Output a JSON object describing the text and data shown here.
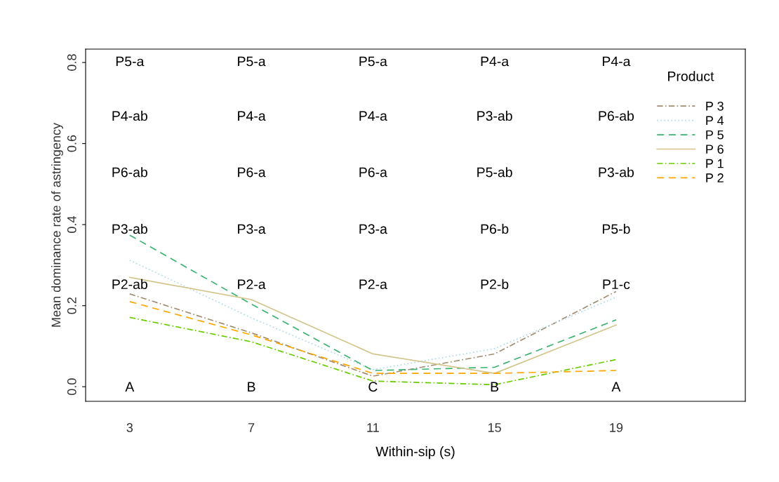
{
  "chart_data": {
    "type": "line",
    "xlabel": "Within-sip (s)",
    "ylabel": "Mean dominance rate of astringency",
    "legend_title": "Product",
    "x": [
      3,
      7,
      11,
      15,
      19
    ],
    "series": [
      {
        "name": "P 3",
        "color": "#a08c6e",
        "line_style": "dashdot",
        "values": [
          0.229,
          0.133,
          0.026,
          0.081,
          0.235
        ]
      },
      {
        "name": "P 4",
        "color": "#add8e6",
        "line_style": "dotted",
        "values": [
          0.312,
          0.17,
          0.042,
          0.094,
          0.221
        ]
      },
      {
        "name": "P 5",
        "color": "#3cb371",
        "line_style": "dashed",
        "values": [
          0.374,
          0.204,
          0.04,
          0.048,
          0.165
        ]
      },
      {
        "name": "P 6",
        "color": "#d2c48a",
        "line_style": "solid",
        "values": [
          0.27,
          0.215,
          0.081,
          0.033,
          0.152
        ]
      },
      {
        "name": "P 1",
        "color": "#66cc00",
        "line_style": "dashdot",
        "values": [
          0.171,
          0.111,
          0.014,
          0.005,
          0.067
        ]
      },
      {
        "name": "P 2",
        "color": "#ffa500",
        "line_style": "dashed",
        "values": [
          0.21,
          0.128,
          0.033,
          0.033,
          0.04
        ]
      }
    ],
    "xlim": [
      1.55,
      23.25
    ],
    "ylim": [
      -0.036,
      0.833
    ],
    "xticks": [
      3,
      7,
      11,
      15,
      19
    ],
    "yticks": [
      {
        "value": 0,
        "label": "0.0"
      },
      0.2,
      0.4,
      0.6,
      0.8
    ],
    "legend": "top right",
    "grid": false,
    "annotations": [
      "P5-a",
      "P5-a",
      "P5-a",
      "P4-a",
      "P4-a",
      "P4-ab",
      "P4-a",
      "P4-a",
      "P3-ab",
      "P6-ab",
      "P6-ab",
      "P6-a",
      "P6-a",
      "P5-ab",
      "P3-ab",
      "P3-ab",
      "P3-a",
      "P3-a",
      "P6-b",
      "P5-b",
      "P2-ab",
      "P2-a",
      "P2-a",
      "P2-b",
      "P1-c",
      "A",
      "B",
      "C",
      "B",
      "A"
    ]
  }
}
